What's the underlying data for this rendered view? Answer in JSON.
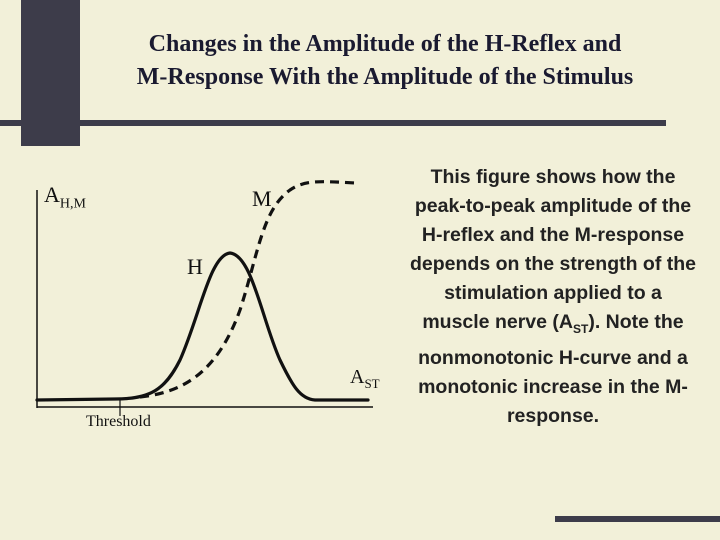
{
  "title": {
    "line1": "Changes in the Amplitude of the H-Reflex and",
    "line2": "M-Response With the Amplitude of the Stimulus"
  },
  "diagram": {
    "y_axis_label_main": "A",
    "y_axis_label_sub": "H,M",
    "x_axis_label_main": "A",
    "x_axis_label_sub": "ST",
    "curve_m_label": "M",
    "curve_h_label": "H",
    "threshold_label": "Threshold"
  },
  "description": {
    "part1": "This figure shows how the peak-to-peak amplitude of the H-reflex and the M-response depends on the strength of the stimulation applied to a muscle nerve (A",
    "sub": "ST",
    "part2": "). Note the nonmonotonic H-curve and a monotonic increase in the M-response."
  },
  "colors": {
    "background": "#f2f0d9",
    "accent_dark": "#3d3c4a",
    "curve": "#111111"
  }
}
